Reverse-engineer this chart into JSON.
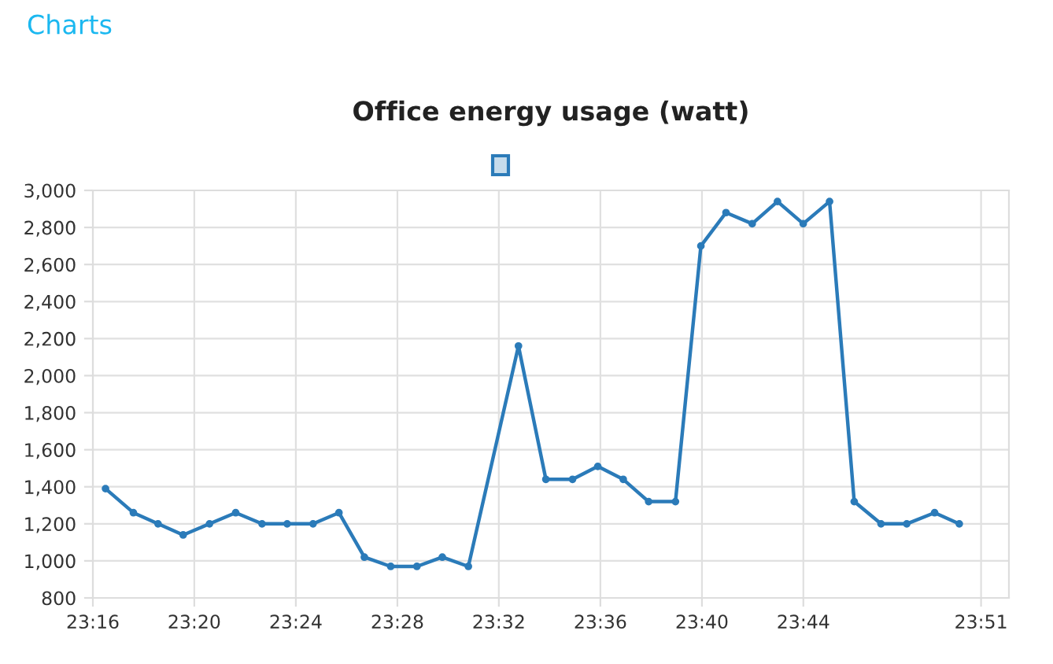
{
  "chart_data": {
    "type": "line",
    "title": "Office energy usage (watt)",
    "annotations": [
      "Charts"
    ],
    "x": [
      23.275,
      23.2933,
      23.3095,
      23.326,
      23.3433,
      23.3605,
      23.3778,
      23.3943,
      23.4113,
      23.4283,
      23.445,
      23.4623,
      23.4795,
      23.4962,
      23.5133,
      23.5462,
      23.5642,
      23.5817,
      23.5983,
      23.615,
      23.6317,
      23.6493,
      23.666,
      23.6825,
      23.6997,
      23.7163,
      23.7332,
      23.7505,
      23.7667,
      23.7843,
      23.8012,
      23.8195,
      23.8357
    ],
    "series": [
      {
        "color": "#2b7bb9",
        "values": [
          1390,
          1260,
          1200,
          1140,
          1200,
          1260,
          1200,
          1200,
          1200,
          1260,
          1020,
          970,
          970,
          1020,
          970,
          2160,
          1440,
          1440,
          1510,
          1440,
          1320,
          1320,
          2700,
          2880,
          2820,
          2940,
          2820,
          2940,
          1320,
          1200,
          1200,
          1260,
          1200
        ]
      }
    ],
    "xlim": [
      23.2667,
      23.8683
    ],
    "xticks": [
      {
        "value": 23.2667,
        "label": "23:16"
      },
      {
        "value": 23.3333,
        "label": "23:20"
      },
      {
        "value": 23.4,
        "label": "23:24"
      },
      {
        "value": 23.4667,
        "label": "23:28"
      },
      {
        "value": 23.5333,
        "label": "23:32"
      },
      {
        "value": 23.6,
        "label": "23:36"
      },
      {
        "value": 23.6667,
        "label": "23:40"
      },
      {
        "value": 23.7333,
        "label": "23:44"
      },
      {
        "value": 23.85,
        "label": "23:51"
      }
    ],
    "ylim": [
      800,
      3000
    ],
    "yticks": [
      {
        "value": 800,
        "label": "800"
      },
      {
        "value": 1000,
        "label": "1,000"
      },
      {
        "value": 1200,
        "label": "1,200"
      },
      {
        "value": 1400,
        "label": "1,400"
      },
      {
        "value": 1600,
        "label": "1,600"
      },
      {
        "value": 1800,
        "label": "1,800"
      },
      {
        "value": 2000,
        "label": "2,000"
      },
      {
        "value": 2200,
        "label": "2,200"
      },
      {
        "value": 2400,
        "label": "2,400"
      },
      {
        "value": 2600,
        "label": "2,600"
      },
      {
        "value": 2800,
        "label": "2,800"
      },
      {
        "value": 3000,
        "label": "3,000"
      }
    ],
    "grid": true,
    "marker": "circle",
    "line_style": "solid"
  }
}
